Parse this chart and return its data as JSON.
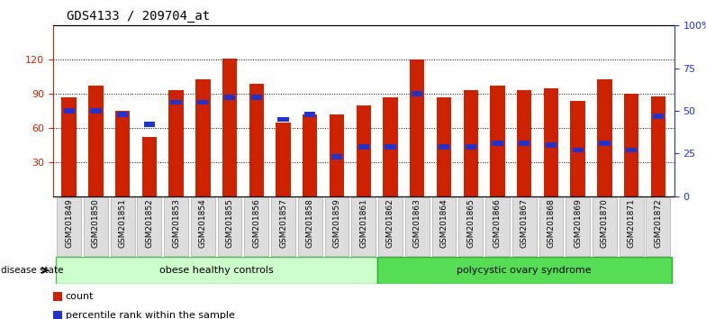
{
  "title": "GDS4133 / 209704_at",
  "samples": [
    "GSM201849",
    "GSM201850",
    "GSM201851",
    "GSM201852",
    "GSM201853",
    "GSM201854",
    "GSM201855",
    "GSM201856",
    "GSM201857",
    "GSM201858",
    "GSM201859",
    "GSM201861",
    "GSM201862",
    "GSM201863",
    "GSM201864",
    "GSM201865",
    "GSM201866",
    "GSM201867",
    "GSM201868",
    "GSM201869",
    "GSM201870",
    "GSM201871",
    "GSM201872"
  ],
  "red_values": [
    87,
    97,
    75,
    52,
    93,
    103,
    121,
    99,
    65,
    72,
    72,
    80,
    87,
    120,
    87,
    93,
    97,
    93,
    95,
    84,
    103,
    90,
    88
  ],
  "blue_pct": [
    50,
    50,
    48,
    42,
    55,
    55,
    58,
    58,
    45,
    48,
    23,
    29,
    29,
    60,
    29,
    29,
    31,
    31,
    30,
    27,
    31,
    27,
    47
  ],
  "groups": [
    {
      "label": "obese healthy controls",
      "start": 0,
      "end": 12,
      "color": "#ccffcc",
      "border": "#55bb55"
    },
    {
      "label": "polycystic ovary syndrome",
      "start": 12,
      "end": 23,
      "color": "#55dd55",
      "border": "#33aa33"
    }
  ],
  "ylim_left": [
    0,
    150
  ],
  "yticks_left": [
    30,
    60,
    90,
    120
  ],
  "ylim_right": [
    0,
    100
  ],
  "yticks_right": [
    0,
    25,
    50,
    75,
    100
  ],
  "bar_color": "#cc2200",
  "blue_color": "#2233cc",
  "bar_width": 0.55,
  "legend_items": [
    {
      "label": "count",
      "color": "#cc2200"
    },
    {
      "label": "percentile rank within the sample",
      "color": "#2233cc"
    }
  ],
  "disease_state_label": "disease state",
  "background_color": "#ffffff",
  "title_color": "#000000",
  "left_axis_color": "#cc2200",
  "right_axis_color": "#2233cc"
}
